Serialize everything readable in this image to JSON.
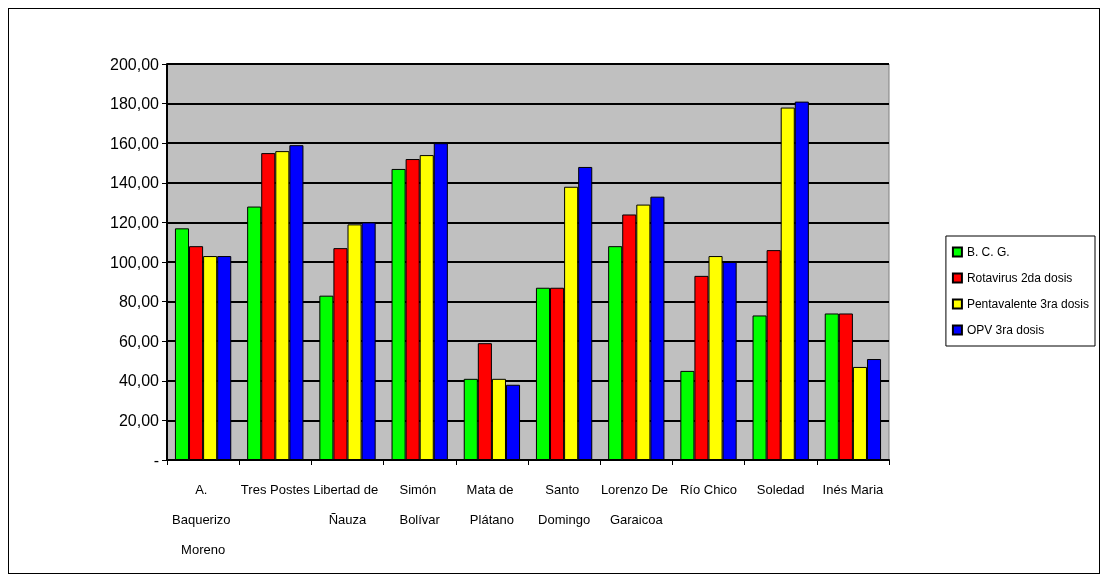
{
  "chart_data": {
    "type": "bar",
    "categories": [
      "A. Baquerizo Moreno",
      "Tres Postes",
      "Libertad de Ñauza",
      "Simón Bolívar",
      "Mata de Plátano",
      "Santo Domingo",
      "Lorenzo De Garaicoa",
      "Río Chico",
      "Soledad",
      "Inés Maria"
    ],
    "series": [
      {
        "name": "B. C. G.",
        "color": "#00ff00",
        "values": [
          117,
          128,
          83,
          147,
          41,
          87,
          108,
          45,
          73,
          74
        ]
      },
      {
        "name": "Rotavirus 2da dosis",
        "color": "#ff0000",
        "values": [
          108,
          155,
          107,
          152,
          59,
          87,
          124,
          93,
          106,
          74
        ]
      },
      {
        "name": "Pentavalente 3ra dosis",
        "color": "#ffff00",
        "values": [
          103,
          156,
          119,
          154,
          41,
          138,
          129,
          103,
          178,
          47
        ]
      },
      {
        "name": "OPV 3ra dosis",
        "color": "#0000ff",
        "values": [
          103,
          159,
          120,
          160,
          38,
          148,
          133,
          100,
          181,
          51
        ]
      }
    ],
    "ylim": [
      0,
      200
    ],
    "yticks": [
      {
        "value": 0,
        "label": "-"
      },
      {
        "value": 20,
        "label": "20,00"
      },
      {
        "value": 40,
        "label": "40,00"
      },
      {
        "value": 60,
        "label": "60,00"
      },
      {
        "value": 80,
        "label": "80,00"
      },
      {
        "value": 100,
        "label": "100,00"
      },
      {
        "value": 120,
        "label": "120,00"
      },
      {
        "value": 140,
        "label": "140,00"
      },
      {
        "value": 160,
        "label": "160,00"
      },
      {
        "value": 180,
        "label": "180,00"
      },
      {
        "value": 200,
        "label": "200,00"
      }
    ],
    "grid": true,
    "legend": "right"
  }
}
